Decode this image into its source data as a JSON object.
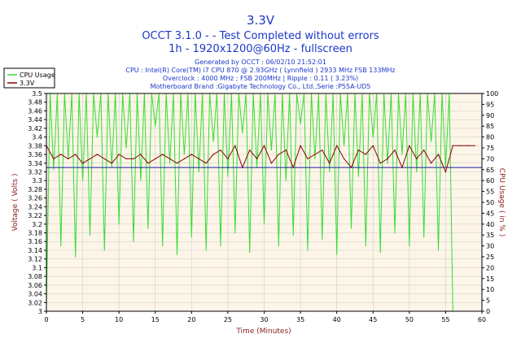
{
  "titles": {
    "main": "3.3V",
    "sub1": "OCCT 3.1.0 -  - Test Completed without errors",
    "sub2": "1h - 1920x1200@60Hz - fullscreen"
  },
  "info": {
    "generated": "Generated by OCCT : 06/02/10 21:52:01",
    "cpu": "CPU : Intel(R) Core(TM) i7 CPU 870 @ 2.93GHz ( Lynnfield ) 2933 MHz FSB 133MHz",
    "overclock": "Overclock : 4000 MHz ; FSB 200MHz | Ripple : 0.11 ( 3.23%)",
    "motherboard": "Motherboard Brand :Gigabyte Technology Co., Ltd.,Serie :P55A-UD5"
  },
  "colors": {
    "cpu_usage": "#33dd33",
    "voltage": "#8b0000",
    "reference": "#1a1aaa",
    "plot_bg": "#fdf5e8",
    "grid": "#c8c8c8",
    "title": "#1a37c8"
  },
  "chart_data": {
    "type": "line",
    "xlabel": "Time (Minutes)",
    "ylabel_left": "Voltage ( Volts )",
    "ylabel_right": "CPU Usage ( in % )",
    "xlim": [
      0,
      60
    ],
    "ylim_left": [
      3.0,
      3.5
    ],
    "ylim_right": [
      0,
      100
    ],
    "x_ticks": [
      "0",
      "5",
      "10",
      "15",
      "20",
      "25",
      "30",
      "35",
      "40",
      "45",
      "50",
      "55",
      "60"
    ],
    "y_ticks_left": [
      "3",
      "3.02",
      "3.04",
      "3.06",
      "3.08",
      "3.1",
      "3.12",
      "3.14",
      "3.16",
      "3.18",
      "3.2",
      "3.22",
      "3.24",
      "3.26",
      "3.28",
      "3.3",
      "3.32",
      "3.34",
      "3.36",
      "3.38",
      "3.4",
      "3.42",
      "3.44",
      "3.46",
      "3.48",
      "3.5"
    ],
    "y_ticks_right": [
      "0",
      "5",
      "10",
      "15",
      "20",
      "25",
      "30",
      "35",
      "40",
      "45",
      "50",
      "55",
      "60",
      "65",
      "70",
      "75",
      "80",
      "85",
      "90",
      "95",
      "100"
    ],
    "grid": true,
    "legend_position": "top-left",
    "reference_line": 3.33,
    "series": [
      {
        "name": "CPU Usage",
        "axis": "right",
        "x": [
          0,
          0.5,
          1,
          1.5,
          2,
          2.5,
          3,
          3.5,
          4,
          4.5,
          5,
          5.5,
          6,
          6.5,
          7,
          7.5,
          8,
          8.5,
          9,
          9.5,
          10,
          10.5,
          11,
          11.5,
          12,
          12.5,
          13,
          13.5,
          14,
          14.5,
          15,
          15.5,
          16,
          16.5,
          17,
          17.5,
          18,
          18.5,
          19,
          19.5,
          20,
          20.5,
          21,
          21.5,
          22,
          22.5,
          23,
          23.5,
          24,
          24.5,
          25,
          25.5,
          26,
          26.5,
          27,
          27.5,
          28,
          28.5,
          29,
          29.5,
          30,
          30.5,
          31,
          31.5,
          32,
          32.5,
          33,
          33.5,
          34,
          34.5,
          35,
          35.5,
          36,
          36.5,
          37,
          37.5,
          38,
          38.5,
          39,
          39.5,
          40,
          40.5,
          41,
          41.5,
          42,
          42.5,
          43,
          43.5,
          44,
          44.5,
          45,
          45.5,
          46,
          46.5,
          47,
          47.5,
          48,
          48.5,
          49,
          49.5,
          50,
          50.5,
          51,
          51.5,
          52,
          52.5,
          53,
          53.5,
          54,
          54.5,
          55,
          55.5,
          56
        ],
        "values": [
          2,
          100,
          65,
          100,
          30,
          100,
          70,
          100,
          25,
          100,
          60,
          100,
          35,
          100,
          80,
          100,
          28,
          100,
          66,
          100,
          40,
          100,
          75,
          100,
          32,
          100,
          60,
          100,
          38,
          100,
          85,
          100,
          30,
          100,
          68,
          100,
          26,
          100,
          72,
          100,
          34,
          100,
          64,
          100,
          28,
          100,
          78,
          100,
          30,
          100,
          62,
          100,
          36,
          100,
          82,
          100,
          27,
          100,
          66,
          100,
          40,
          100,
          74,
          100,
          30,
          100,
          60,
          100,
          35,
          100,
          86,
          100,
          28,
          100,
          70,
          100,
          33,
          100,
          64,
          100,
          26,
          100,
          76,
          100,
          38,
          100,
          62,
          100,
          30,
          100,
          80,
          100,
          27,
          100,
          68,
          100,
          36,
          100,
          72,
          100,
          30,
          100,
          64,
          100,
          34,
          100,
          78,
          100,
          28,
          100,
          66,
          100,
          0
        ]
      },
      {
        "name": "3.3V",
        "axis": "left",
        "x": [
          0,
          1,
          2,
          3,
          4,
          5,
          6,
          7,
          8,
          9,
          10,
          11,
          12,
          13,
          14,
          15,
          16,
          17,
          18,
          19,
          20,
          21,
          22,
          23,
          24,
          25,
          26,
          27,
          28,
          29,
          30,
          31,
          32,
          33,
          34,
          35,
          36,
          37,
          38,
          39,
          40,
          41,
          42,
          43,
          44,
          45,
          46,
          47,
          48,
          49,
          50,
          51,
          52,
          53,
          54,
          55,
          56,
          57,
          58,
          59
        ],
        "values": [
          3.38,
          3.35,
          3.36,
          3.35,
          3.36,
          3.34,
          3.35,
          3.36,
          3.35,
          3.34,
          3.36,
          3.35,
          3.35,
          3.36,
          3.34,
          3.35,
          3.36,
          3.35,
          3.34,
          3.35,
          3.36,
          3.35,
          3.34,
          3.36,
          3.37,
          3.35,
          3.38,
          3.33,
          3.37,
          3.35,
          3.38,
          3.34,
          3.36,
          3.37,
          3.33,
          3.38,
          3.35,
          3.36,
          3.37,
          3.34,
          3.38,
          3.35,
          3.33,
          3.37,
          3.36,
          3.38,
          3.34,
          3.35,
          3.37,
          3.33,
          3.38,
          3.35,
          3.37,
          3.34,
          3.36,
          3.32,
          3.38,
          3.38,
          3.38,
          3.38
        ]
      }
    ]
  }
}
